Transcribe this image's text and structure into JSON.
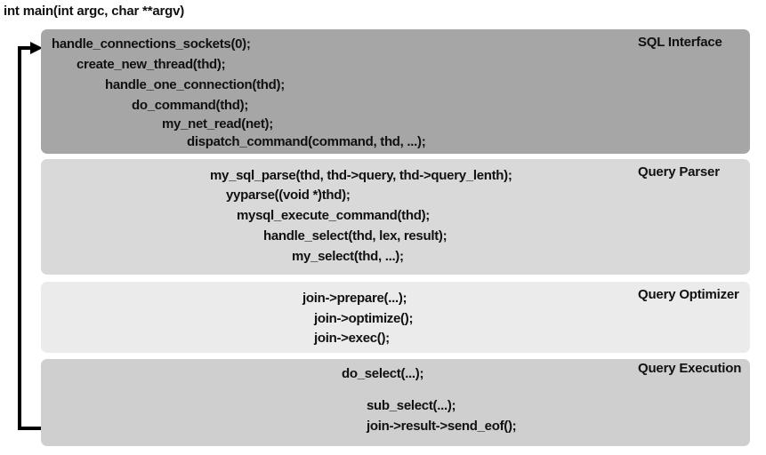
{
  "header": {
    "signature": "int main(int argc, char **argv)"
  },
  "colors": {
    "sql_interface": "#a6a6a6",
    "query_parser": "#d9d9d9",
    "query_optimizer": "#ebebeb",
    "query_execution": "#cfcfcf",
    "arrow": "#000000"
  },
  "layers": [
    {
      "label": "SQL Interface",
      "lines": [
        "handle_connections_sockets(0);",
        "create_new_thread(thd);",
        "handle_one_connection(thd);",
        "do_command(thd);",
        "my_net_read(net);",
        "dispatch_command(command, thd, ...);"
      ]
    },
    {
      "label": "Query Parser",
      "lines": [
        "my_sql_parse(thd, thd->query, thd->query_lenth);",
        "yyparse((void *)thd);",
        "mysql_execute_command(thd);",
        "handle_select(thd, lex, result);",
        "my_select(thd, ...);"
      ]
    },
    {
      "label": "Query Optimizer",
      "lines": [
        "join->prepare(...);",
        "join->optimize();",
        "join->exec();"
      ]
    },
    {
      "label": "Query Execution",
      "lines": [
        "do_select(...);",
        "sub_select(...);",
        "join->result->send_eof();"
      ]
    }
  ]
}
